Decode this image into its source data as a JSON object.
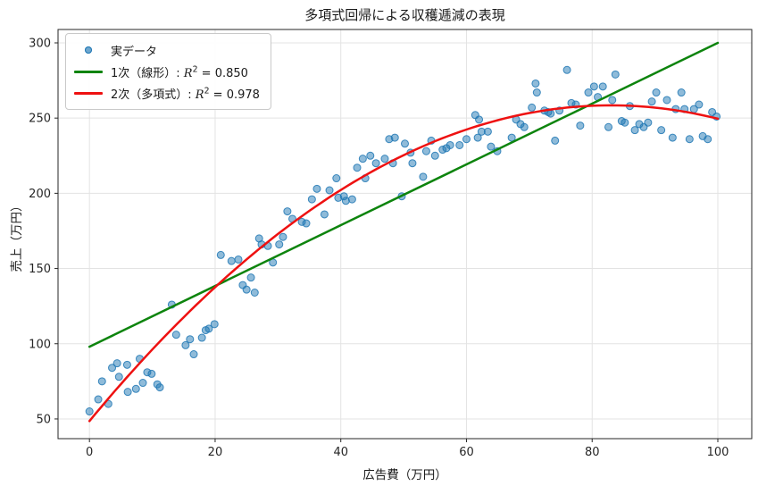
{
  "figure": {
    "title": "多項式回帰による収穫逓減の表現",
    "background": "#ffffff"
  },
  "chart_data": {
    "type": "scatter",
    "title": "多項式回帰による収穫逓減の表現",
    "xlabel": "広告費（万円）",
    "ylabel": "売上（万円）",
    "xlim": [
      -5.0,
      105.4
    ],
    "ylim": [
      36.9,
      308.9
    ],
    "xticks": [
      0,
      20,
      40,
      60,
      80,
      100
    ],
    "yticks": [
      50,
      100,
      150,
      200,
      250,
      300
    ],
    "grid": true,
    "grid_color": "#e3e3e3",
    "frame_color": "#262626",
    "tick_label_color": "#262626",
    "legend_position": "upper left",
    "series": [
      {
        "name": "実データ",
        "type": "scatter",
        "color": "#1f77b4",
        "alpha": 0.5,
        "marker_radius": 4,
        "points": [
          [
            0,
            55
          ],
          [
            1.4,
            63
          ],
          [
            2,
            75
          ],
          [
            3,
            60
          ],
          [
            3.6,
            84
          ],
          [
            4.4,
            87
          ],
          [
            4.7,
            78
          ],
          [
            6,
            86
          ],
          [
            6.1,
            68
          ],
          [
            7.4,
            70
          ],
          [
            8,
            90
          ],
          [
            8.5,
            74
          ],
          [
            9.2,
            81
          ],
          [
            9.9,
            80
          ],
          [
            10.8,
            73
          ],
          [
            11.2,
            71
          ],
          [
            13.1,
            126
          ],
          [
            13.8,
            106
          ],
          [
            15.3,
            99
          ],
          [
            16,
            103
          ],
          [
            16.6,
            93
          ],
          [
            17.9,
            104
          ],
          [
            18.5,
            109
          ],
          [
            19,
            110
          ],
          [
            19.9,
            113
          ],
          [
            20.9,
            159
          ],
          [
            22.6,
            155
          ],
          [
            23.7,
            156
          ],
          [
            24.4,
            139
          ],
          [
            25,
            136
          ],
          [
            25.7,
            144
          ],
          [
            26.3,
            134
          ],
          [
            27,
            170
          ],
          [
            27.4,
            166
          ],
          [
            28.4,
            165
          ],
          [
            29.2,
            154
          ],
          [
            30.2,
            166
          ],
          [
            30.8,
            171
          ],
          [
            31.5,
            188
          ],
          [
            32.3,
            183
          ],
          [
            33.8,
            181
          ],
          [
            34.5,
            180
          ],
          [
            35.4,
            196
          ],
          [
            36.2,
            203
          ],
          [
            37.4,
            186
          ],
          [
            38.2,
            202
          ],
          [
            39.3,
            210
          ],
          [
            39.6,
            197
          ],
          [
            40.5,
            198
          ],
          [
            40.8,
            195
          ],
          [
            41.8,
            196
          ],
          [
            42.6,
            217
          ],
          [
            43.5,
            223
          ],
          [
            43.9,
            210
          ],
          [
            44.7,
            225
          ],
          [
            45.6,
            220
          ],
          [
            47,
            223
          ],
          [
            47.7,
            236
          ],
          [
            48.3,
            220
          ],
          [
            48.6,
            237
          ],
          [
            49.7,
            198
          ],
          [
            50.2,
            233
          ],
          [
            51.1,
            227
          ],
          [
            51.4,
            220
          ],
          [
            53.1,
            211
          ],
          [
            53.6,
            228
          ],
          [
            54.4,
            235
          ],
          [
            55,
            225
          ],
          [
            56.2,
            229
          ],
          [
            56.8,
            230
          ],
          [
            57.4,
            232
          ],
          [
            58.9,
            232
          ],
          [
            60,
            236
          ],
          [
            61.4,
            252
          ],
          [
            61.8,
            237
          ],
          [
            62,
            249
          ],
          [
            62.4,
            241
          ],
          [
            63.4,
            241
          ],
          [
            63.9,
            231
          ],
          [
            64.9,
            228
          ],
          [
            67.2,
            237
          ],
          [
            67.9,
            249
          ],
          [
            68.6,
            246
          ],
          [
            69.2,
            244
          ],
          [
            70.4,
            257
          ],
          [
            71,
            273
          ],
          [
            71.2,
            267
          ],
          [
            72.4,
            255
          ],
          [
            73,
            254
          ],
          [
            73.4,
            253
          ],
          [
            74.1,
            235
          ],
          [
            74.8,
            255
          ],
          [
            76,
            282
          ],
          [
            76.7,
            260
          ],
          [
            77.4,
            259
          ],
          [
            78.1,
            245
          ],
          [
            79.4,
            267
          ],
          [
            80.3,
            271
          ],
          [
            80.9,
            264
          ],
          [
            81.7,
            271
          ],
          [
            82.6,
            244
          ],
          [
            83.2,
            262
          ],
          [
            83.7,
            279
          ],
          [
            84.7,
            248
          ],
          [
            85.2,
            247
          ],
          [
            86,
            258
          ],
          [
            86.8,
            242
          ],
          [
            87.5,
            246
          ],
          [
            88.2,
            244
          ],
          [
            88.9,
            247
          ],
          [
            89.5,
            261
          ],
          [
            90.2,
            267
          ],
          [
            91,
            242
          ],
          [
            91.9,
            262
          ],
          [
            92.8,
            237
          ],
          [
            93.3,
            256
          ],
          [
            94.2,
            267
          ],
          [
            94.7,
            256
          ],
          [
            95.5,
            236
          ],
          [
            96.2,
            256
          ],
          [
            97,
            259
          ],
          [
            97.6,
            238
          ],
          [
            98.4,
            236
          ],
          [
            99.1,
            254
          ],
          [
            99.8,
            251
          ]
        ]
      },
      {
        "name": "1次（線形）",
        "type": "line",
        "color": "#0d840d",
        "line_width": 2.5,
        "r_squared": 0.85,
        "endpoints": [
          [
            0,
            98
          ],
          [
            100,
            300
          ]
        ]
      },
      {
        "name": "2次（多項式）",
        "type": "quadratic",
        "color": "#ee1111",
        "line_width": 2.5,
        "r_squared": 0.978,
        "coefficients": {
          "a": 48.6,
          "b": 5.06,
          "c": -0.0305
        },
        "x_range": [
          0,
          100
        ],
        "peak": [
          83,
          258
        ]
      }
    ]
  },
  "legend": {
    "math_r": "R",
    "math_exp": "2",
    "eq": " = ",
    "items": [
      {
        "label": "実データ",
        "marker": "dot",
        "color": "#1f77b4"
      },
      {
        "prefix": "1次（線形）: ",
        "value": "0.850",
        "marker": "line",
        "color": "#0d840d"
      },
      {
        "prefix": "2次（多項式）: ",
        "value": "0.978",
        "marker": "line",
        "color": "#ee1111"
      }
    ]
  }
}
